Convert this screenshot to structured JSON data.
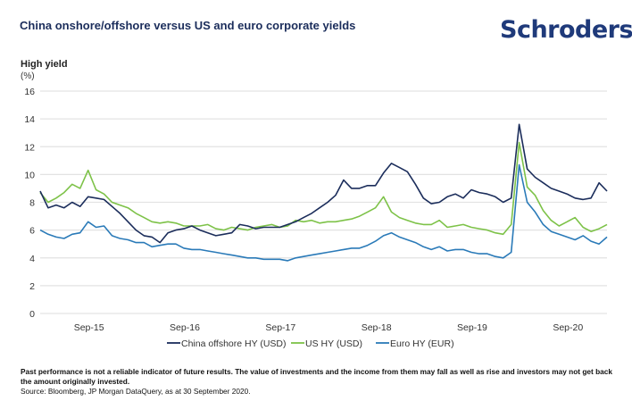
{
  "header": {
    "title": "China onshore/offshore versus US and euro corporate yields",
    "brand": "Schroders"
  },
  "footer": {
    "disclaimer": "Past performance is not a reliable indicator of future results. The value of investments and the income from them may fall as well as rise and investors may not get back the amount originally invested.",
    "source": "Source: Bloomberg, JP Morgan DataQuery, as at 30 September 2020."
  },
  "chart_data": {
    "type": "line",
    "title": "China onshore/offshore versus US and euro corporate yields",
    "ylabel": "High yield",
    "yunit": "(%)",
    "xlabel": "",
    "ylim": [
      0,
      16
    ],
    "yticks": [
      0,
      2,
      4,
      6,
      8,
      10,
      12,
      14,
      16
    ],
    "ytick_labels": [
      "0",
      "2",
      "4",
      "6",
      "8",
      "10",
      "12",
      "14",
      "16"
    ],
    "xtick_labels": [
      "Sep-15",
      "Sep-16",
      "Sep-17",
      "Sep-18",
      "Sep-19",
      "Sep-20"
    ],
    "xtick_index": [
      6,
      18,
      30,
      42,
      54,
      66
    ],
    "grid": true,
    "legend_position": "bottom",
    "x": [
      "Mar-15",
      "Apr-15",
      "May-15",
      "Jun-15",
      "Jul-15",
      "Aug-15",
      "Sep-15",
      "Oct-15",
      "Nov-15",
      "Dec-15",
      "Jan-16",
      "Feb-16",
      "Mar-16",
      "Apr-16",
      "May-16",
      "Jun-16",
      "Jul-16",
      "Aug-16",
      "Sep-16",
      "Oct-16",
      "Nov-16",
      "Dec-16",
      "Jan-17",
      "Feb-17",
      "Mar-17",
      "Apr-17",
      "May-17",
      "Jun-17",
      "Jul-17",
      "Aug-17",
      "Sep-17",
      "Oct-17",
      "Nov-17",
      "Dec-17",
      "Jan-18",
      "Feb-18",
      "Mar-18",
      "Apr-18",
      "May-18",
      "Jun-18",
      "Jul-18",
      "Aug-18",
      "Sep-18",
      "Oct-18",
      "Nov-18",
      "Dec-18",
      "Jan-19",
      "Feb-19",
      "Mar-19",
      "Apr-19",
      "May-19",
      "Jun-19",
      "Jul-19",
      "Aug-19",
      "Sep-19",
      "Oct-19",
      "Nov-19",
      "Dec-19",
      "Jan-20",
      "Feb-20",
      "Mar-20",
      "Apr-20",
      "May-20",
      "Jun-20",
      "Jul-20",
      "Aug-20",
      "Sep-20",
      "Oct-20",
      "Nov-20",
      "Dec-20",
      "Jan-21",
      "Feb-21"
    ],
    "series": [
      {
        "name": "China offshore HY (USD)",
        "color": "#1b2d5b",
        "values": [
          8.8,
          7.6,
          7.8,
          7.6,
          8.0,
          7.7,
          8.4,
          8.3,
          8.2,
          7.7,
          7.2,
          6.6,
          6.0,
          5.6,
          5.5,
          5.1,
          5.8,
          6.0,
          6.1,
          6.3,
          6.0,
          5.8,
          5.6,
          5.7,
          5.8,
          6.4,
          6.3,
          6.1,
          6.2,
          6.2,
          6.2,
          6.4,
          6.6,
          6.9,
          7.2,
          7.6,
          8.0,
          8.5,
          9.6,
          9.0,
          9.0,
          9.2,
          9.2,
          10.1,
          10.8,
          10.5,
          10.2,
          9.3,
          8.3,
          7.9,
          8.0,
          8.4,
          8.6,
          8.3,
          8.9,
          8.7,
          8.6,
          8.4,
          8.0,
          8.3,
          13.6,
          10.4,
          9.8,
          9.4,
          9.0,
          8.8,
          8.6,
          8.3,
          8.2,
          8.3,
          9.4,
          8.8
        ]
      },
      {
        "name": "US HY (USD)",
        "color": "#7dc248",
        "values": [
          8.7,
          8.0,
          8.3,
          8.7,
          9.3,
          9.0,
          10.3,
          8.9,
          8.6,
          8.0,
          7.8,
          7.6,
          7.2,
          6.9,
          6.6,
          6.5,
          6.6,
          6.5,
          6.3,
          6.3,
          6.3,
          6.4,
          6.1,
          6.0,
          6.2,
          6.1,
          6.0,
          6.2,
          6.3,
          6.4,
          6.2,
          6.3,
          6.7,
          6.6,
          6.7,
          6.5,
          6.6,
          6.6,
          6.7,
          6.8,
          7.0,
          7.3,
          7.6,
          8.4,
          7.3,
          6.9,
          6.7,
          6.5,
          6.4,
          6.4,
          6.7,
          6.2,
          6.3,
          6.4,
          6.2,
          6.1,
          6.0,
          5.8,
          5.7,
          6.4,
          12.3,
          9.1,
          8.5,
          7.4,
          6.7,
          6.3,
          6.6,
          6.9,
          6.2,
          5.9,
          6.1,
          6.4
        ]
      },
      {
        "name": "Euro HY (EUR)",
        "color": "#2a7ab8",
        "values": [
          6.0,
          5.7,
          5.5,
          5.4,
          5.7,
          5.8,
          6.6,
          6.2,
          6.3,
          5.6,
          5.4,
          5.3,
          5.1,
          5.1,
          4.8,
          4.9,
          5.0,
          5.0,
          4.7,
          4.6,
          4.6,
          4.5,
          4.4,
          4.3,
          4.2,
          4.1,
          4.0,
          4.0,
          3.9,
          3.9,
          3.9,
          3.8,
          4.0,
          4.1,
          4.2,
          4.3,
          4.4,
          4.5,
          4.6,
          4.7,
          4.7,
          4.9,
          5.2,
          5.6,
          5.8,
          5.5,
          5.3,
          5.1,
          4.8,
          4.6,
          4.8,
          4.5,
          4.6,
          4.6,
          4.4,
          4.3,
          4.3,
          4.1,
          4.0,
          4.4,
          10.7,
          8.0,
          7.3,
          6.4,
          5.9,
          5.7,
          5.5,
          5.3,
          5.6,
          5.2,
          5.0,
          5.5
        ]
      }
    ]
  }
}
